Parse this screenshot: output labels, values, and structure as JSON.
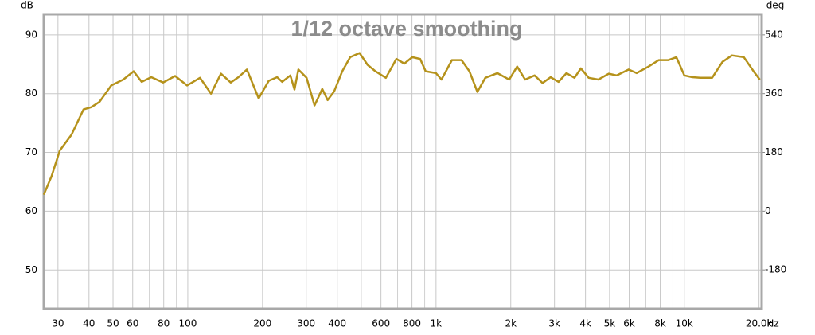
{
  "chart_data": {
    "type": "line",
    "title": "1/12 octave smoothing",
    "y_label": "dB",
    "y2_label": "deg",
    "x_label": "Hz",
    "log_x": true,
    "grid": true,
    "xlim": [
      26.3,
      20500
    ],
    "xticks": [
      30,
      40,
      50,
      60,
      80,
      100,
      200,
      300,
      400,
      600,
      800,
      {
        "value": 1000,
        "label": "1k"
      },
      {
        "value": 2000,
        "label": "2k"
      },
      {
        "value": 3000,
        "label": "3k"
      },
      {
        "value": 4000,
        "label": "4k"
      },
      {
        "value": 5000,
        "label": "5k"
      },
      {
        "value": 6000,
        "label": "6k"
      },
      {
        "value": 8000,
        "label": "8k"
      },
      {
        "value": 10000,
        "label": "10k"
      },
      {
        "value": 20000,
        "label": "20.0k"
      }
    ],
    "xgrid_minor": [
      70,
      90,
      500,
      700,
      900,
      7000,
      9000
    ],
    "ylim": [
      43.4,
      93.5
    ],
    "yticks": [
      50,
      60,
      70,
      80,
      90
    ],
    "y2lim": [
      -299,
      603
    ],
    "y2ticks": [
      -180,
      0,
      180,
      360,
      540
    ],
    "x": [
      26.3,
      28.3,
      30.5,
      34.0,
      38.0,
      40.9,
      44.1,
      49.2,
      55.0,
      60.5,
      65.2,
      71.3,
      79.6,
      88.9,
      99.3,
      112,
      124,
      136,
      149,
      160,
      173,
      193,
      212,
      229,
      240,
      259,
      269,
      279,
      301,
      324,
      348,
      366,
      389,
      419,
      451,
      492,
      530,
      570,
      628,
      692,
      745,
      802,
      863,
      908,
      1000,
      1052,
      1159,
      1267,
      1363,
      1468,
      1580,
      1766,
      1972,
      2123,
      2285,
      2495,
      2686,
      2895,
      3117,
      3355,
      3612,
      3830,
      4123,
      4508,
      4966,
      5346,
      5970,
      6427,
      7178,
      7890,
      8630,
      9290,
      10000,
      10770,
      11590,
      12940,
      14250,
      15560,
      17380,
      19010,
      20140
    ],
    "series": [
      {
        "color": "#b5921b",
        "values": [
          62.8,
          66,
          70.3,
          73,
          77.3,
          77.7,
          78.6,
          81.4,
          82.4,
          83.8,
          82,
          82.8,
          81.9,
          83,
          81.4,
          82.7,
          80,
          83.4,
          81.9,
          82.8,
          84.1,
          79.2,
          82.2,
          82.8,
          82,
          83.1,
          80.7,
          84.1,
          82.7,
          78,
          80.8,
          78.9,
          80.4,
          83.8,
          86.2,
          86.9,
          84.9,
          83.8,
          82.7,
          85.9,
          85.1,
          86.2,
          85.9,
          83.8,
          83.5,
          82.4,
          85.7,
          85.7,
          83.8,
          80.3,
          82.7,
          83.5,
          82.4,
          84.6,
          82.4,
          83.1,
          81.8,
          82.8,
          82,
          83.5,
          82.7,
          84.3,
          82.7,
          82.4,
          83.4,
          83.1,
          84.1,
          83.5,
          84.6,
          85.7,
          85.7,
          86.2,
          83.1,
          82.8,
          82.7,
          82.7,
          85.4,
          86.5,
          86.2,
          83.8,
          82.4
        ]
      }
    ]
  }
}
